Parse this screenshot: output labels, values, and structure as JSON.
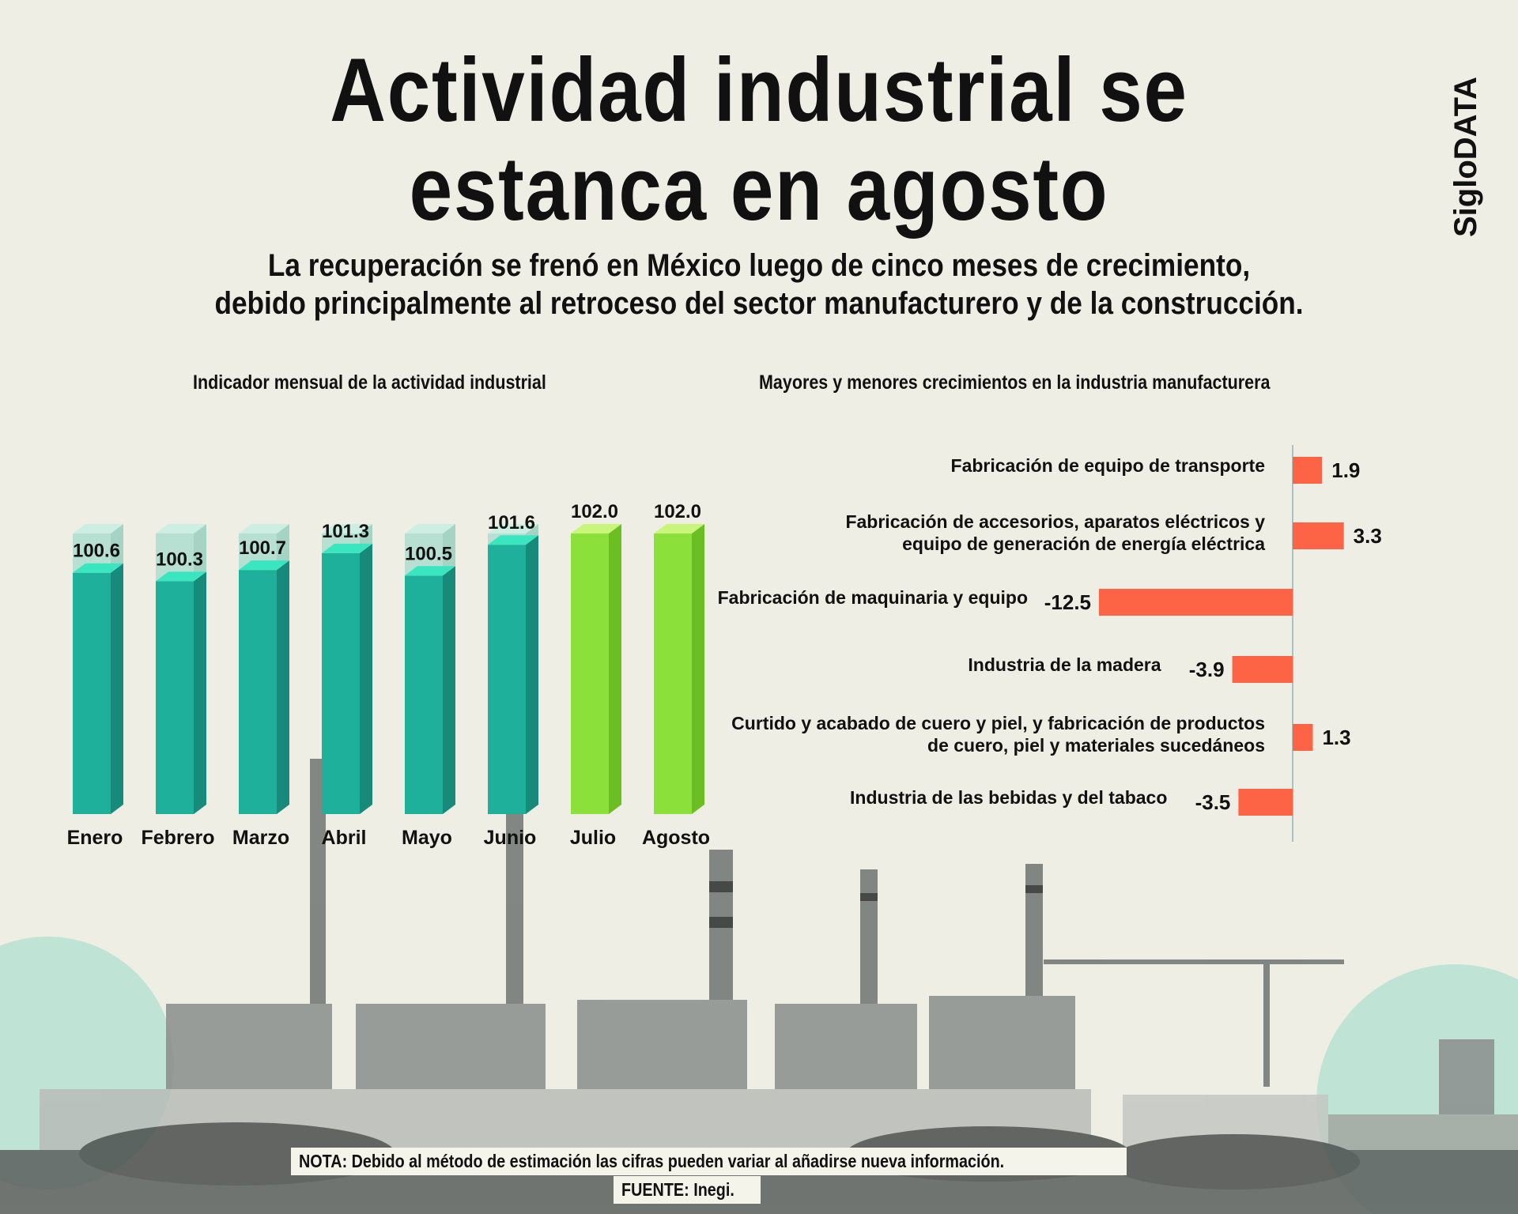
{
  "title": {
    "line1": "Actividad industrial se",
    "line2": "estanca en agosto"
  },
  "subtitle": {
    "line1": "La recuperación se frenó en México luego de cinco meses de crecimiento,",
    "line2": "debido principalmente al retroceso del sector manufacturero y de la construcción."
  },
  "brand": "SigloDATA",
  "footer": {
    "note": "NOTA: Debido al método de estimación las cifras pueden variar al añadirse nueva información.",
    "source": "FUENTE: Inegi."
  },
  "colors": {
    "teal": "#1fb09b",
    "teal_dark": "#178a7c",
    "teal_top": "#39e6bf",
    "green": "#8ce03a",
    "green_dark": "#6cbf22",
    "green_top": "#c8f57a",
    "ghost": "#b8e0d2",
    "red": "#fd6445",
    "factory": "#6f7473"
  },
  "chart_data": [
    {
      "type": "bar",
      "title": "Indicador mensual de la actividad industrial",
      "categories": [
        "Enero",
        "Febrero",
        "Marzo",
        "Abril",
        "Mayo",
        "Junio",
        "Julio",
        "Agosto"
      ],
      "values": [
        100.6,
        100.3,
        100.7,
        101.3,
        100.5,
        101.6,
        102.0,
        102.0
      ],
      "labels": [
        "100.6",
        "100.3",
        "100.7",
        "101.3",
        "100.5",
        "101.6",
        "102.0",
        "102.0"
      ],
      "highlight": [
        "Julio",
        "Agosto"
      ],
      "xlabel": "",
      "ylabel": "",
      "ylim": [
        92,
        102.0
      ]
    },
    {
      "type": "bar",
      "orientation": "horizontal",
      "title": "Mayores y menores crecimientos en la industria manufacturera",
      "categories": [
        [
          "Fabricación de equipo de transporte"
        ],
        [
          "Fabricación de accesorios, aparatos eléctricos y",
          "equipo de generación de energía eléctrica"
        ],
        [
          "Fabricación de maquinaria y equipo"
        ],
        [
          "Industria de la madera"
        ],
        [
          "Curtido y acabado de cuero y piel, y fabricación de productos",
          "de cuero, piel y materiales sucedáneos"
        ],
        [
          "Industria de las bebidas y del tabaco"
        ]
      ],
      "values": [
        1.9,
        3.3,
        -12.5,
        -3.9,
        1.3,
        -3.5
      ],
      "labels": [
        "1.9",
        "3.3",
        "-12.5",
        "-3.9",
        "1.3",
        "-3.5"
      ],
      "xlim": [
        -12.5,
        3.3
      ]
    }
  ]
}
